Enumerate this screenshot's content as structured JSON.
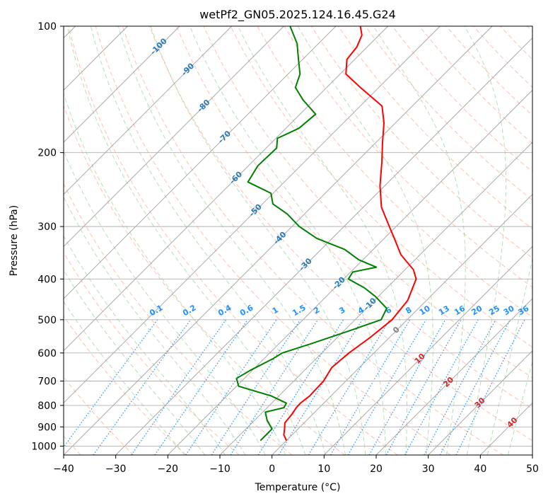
{
  "chart_data": {
    "type": "line",
    "subtype": "skew-t log-p diagram",
    "title": "wetPf2_GN05.2025.124.16.45.G24",
    "xlabel": "Temperature (°C)",
    "ylabel": "Pressure (hPa)",
    "xlim": [
      -40,
      50
    ],
    "ylim": [
      1050,
      100
    ],
    "y_scale": "log",
    "grid": true,
    "x_ticks": [
      "−40",
      "−30",
      "−20",
      "−10",
      "0",
      "10",
      "20",
      "30",
      "40",
      "50"
    ],
    "x_tick_values": [
      -40,
      -30,
      -20,
      -10,
      0,
      10,
      20,
      30,
      40,
      50
    ],
    "y_ticks": [
      "100",
      "200",
      "300",
      "400",
      "500",
      "600",
      "700",
      "800",
      "900",
      "1000"
    ],
    "y_tick_values": [
      100,
      200,
      300,
      400,
      500,
      600,
      700,
      800,
      900,
      1000
    ],
    "series": [
      {
        "role": "temperature",
        "color": "#ff0000",
        "points": [
          {
            "p": 970,
            "t": 0.0
          },
          {
            "p": 940,
            "t": -1.6
          },
          {
            "p": 910,
            "t": -2.6
          },
          {
            "p": 880,
            "t": -3.7
          },
          {
            "p": 840,
            "t": -4.0
          },
          {
            "p": 810,
            "t": -4.4
          },
          {
            "p": 790,
            "t": -4.5
          },
          {
            "p": 760,
            "t": -4.1
          },
          {
            "p": 700,
            "t": -4.3
          },
          {
            "p": 650,
            "t": -5.3
          },
          {
            "p": 600,
            "t": -4.8
          },
          {
            "p": 550,
            "t": -3.7
          },
          {
            "p": 500,
            "t": -2.9
          },
          {
            "p": 450,
            "t": -3.6
          },
          {
            "p": 400,
            "t": -6.1
          },
          {
            "p": 380,
            "t": -8.4
          },
          {
            "p": 350,
            "t": -13.7
          },
          {
            "p": 320,
            "t": -18.1
          },
          {
            "p": 300,
            "t": -21.3
          },
          {
            "p": 270,
            "t": -26.5
          },
          {
            "p": 240,
            "t": -30.9
          },
          {
            "p": 210,
            "t": -35.2
          },
          {
            "p": 190,
            "t": -38.6
          },
          {
            "p": 170,
            "t": -42.2
          },
          {
            "p": 155,
            "t": -45.8
          },
          {
            "p": 140,
            "t": -53.5
          },
          {
            "p": 130,
            "t": -58.9
          },
          {
            "p": 120,
            "t": -61.5
          },
          {
            "p": 112,
            "t": -62.0
          },
          {
            "p": 105,
            "t": -63.3
          },
          {
            "p": 100,
            "t": -65.3
          }
        ]
      },
      {
        "role": "dewpoint",
        "color": "#008000",
        "points": [
          {
            "p": 970,
            "t": -5.0
          },
          {
            "p": 940,
            "t": -5.0
          },
          {
            "p": 910,
            "t": -5.0
          },
          {
            "p": 870,
            "t": -7.5
          },
          {
            "p": 830,
            "t": -9.5
          },
          {
            "p": 810,
            "t": -6.8
          },
          {
            "p": 790,
            "t": -7.2
          },
          {
            "p": 760,
            "t": -11.4
          },
          {
            "p": 720,
            "t": -19.6
          },
          {
            "p": 690,
            "t": -21.5
          },
          {
            "p": 660,
            "t": -20.4
          },
          {
            "p": 620,
            "t": -18.3
          },
          {
            "p": 600,
            "t": -17.6
          },
          {
            "p": 570,
            "t": -13.8
          },
          {
            "p": 530,
            "t": -8.8
          },
          {
            "p": 500,
            "t": -5.0
          },
          {
            "p": 470,
            "t": -6.1
          },
          {
            "p": 440,
            "t": -10.6
          },
          {
            "p": 420,
            "t": -14.3
          },
          {
            "p": 400,
            "t": -19.1
          },
          {
            "p": 385,
            "t": -19.6
          },
          {
            "p": 375,
            "t": -16.0
          },
          {
            "p": 360,
            "t": -20.8
          },
          {
            "p": 340,
            "t": -25.5
          },
          {
            "p": 320,
            "t": -33.0
          },
          {
            "p": 300,
            "t": -38.6
          },
          {
            "p": 280,
            "t": -43.3
          },
          {
            "p": 265,
            "t": -48.0
          },
          {
            "p": 250,
            "t": -50.4
          },
          {
            "p": 235,
            "t": -57.0
          },
          {
            "p": 215,
            "t": -58.2
          },
          {
            "p": 195,
            "t": -58.0
          },
          {
            "p": 185,
            "t": -59.7
          },
          {
            "p": 175,
            "t": -57.5
          },
          {
            "p": 162,
            "t": -57.0
          },
          {
            "p": 150,
            "t": -62.1
          },
          {
            "p": 140,
            "t": -66.0
          },
          {
            "p": 130,
            "t": -67.7
          },
          {
            "p": 120,
            "t": -70.8
          },
          {
            "p": 110,
            "t": -74.1
          },
          {
            "p": 100,
            "t": -78.8
          }
        ]
      }
    ],
    "reference_lines": {
      "isotherms": {
        "color": "#a0a0a0",
        "spacing_c": 10
      },
      "dry_adiabats": {
        "color": "#ff8c69",
        "style": "dashed"
      },
      "moist_adiabats": {
        "color": "#5cb85c",
        "style": "dashed"
      },
      "mixing_ratio": {
        "color": "#1e90ff",
        "style": "dotted"
      }
    },
    "isotherm_labels": [
      {
        "text": "-100",
        "t": -100,
        "p": 112
      },
      {
        "text": "-90",
        "t": -90,
        "p": 127
      },
      {
        "text": "-80",
        "t": -80,
        "p": 155
      },
      {
        "text": "-70",
        "t": -70,
        "p": 184
      },
      {
        "text": "-60",
        "t": -60,
        "p": 230
      },
      {
        "text": "-50",
        "t": -50,
        "p": 275
      },
      {
        "text": "-40",
        "t": -40,
        "p": 320
      },
      {
        "text": "-30",
        "t": -30,
        "p": 370
      },
      {
        "text": "-20",
        "t": -20,
        "p": 410
      },
      {
        "text": "-10",
        "t": -10,
        "p": 460
      },
      {
        "text": "0",
        "t": 0,
        "p": 530
      }
    ],
    "mixing_ratio_labels": [
      "0.1",
      "0.2",
      "0.4",
      "0.6",
      "1",
      "1.5",
      "2",
      "3",
      "4",
      "6",
      "8",
      "10",
      "13",
      "16",
      "20",
      "25",
      "30",
      "36"
    ],
    "mixing_ratio_values": [
      0.1,
      0.2,
      0.4,
      0.6,
      1,
      1.5,
      2,
      3,
      4,
      6,
      8,
      10,
      13,
      16,
      20,
      25,
      30,
      36
    ],
    "mixing_ratio_label_pressure": 500,
    "moist_adiabat_labels": [
      {
        "text": "10",
        "t": 10,
        "p": 620
      },
      {
        "text": "20",
        "t": 20,
        "p": 705
      },
      {
        "text": "30",
        "t": 30,
        "p": 790
      },
      {
        "text": "40",
        "t": 40,
        "p": 880
      }
    ]
  }
}
